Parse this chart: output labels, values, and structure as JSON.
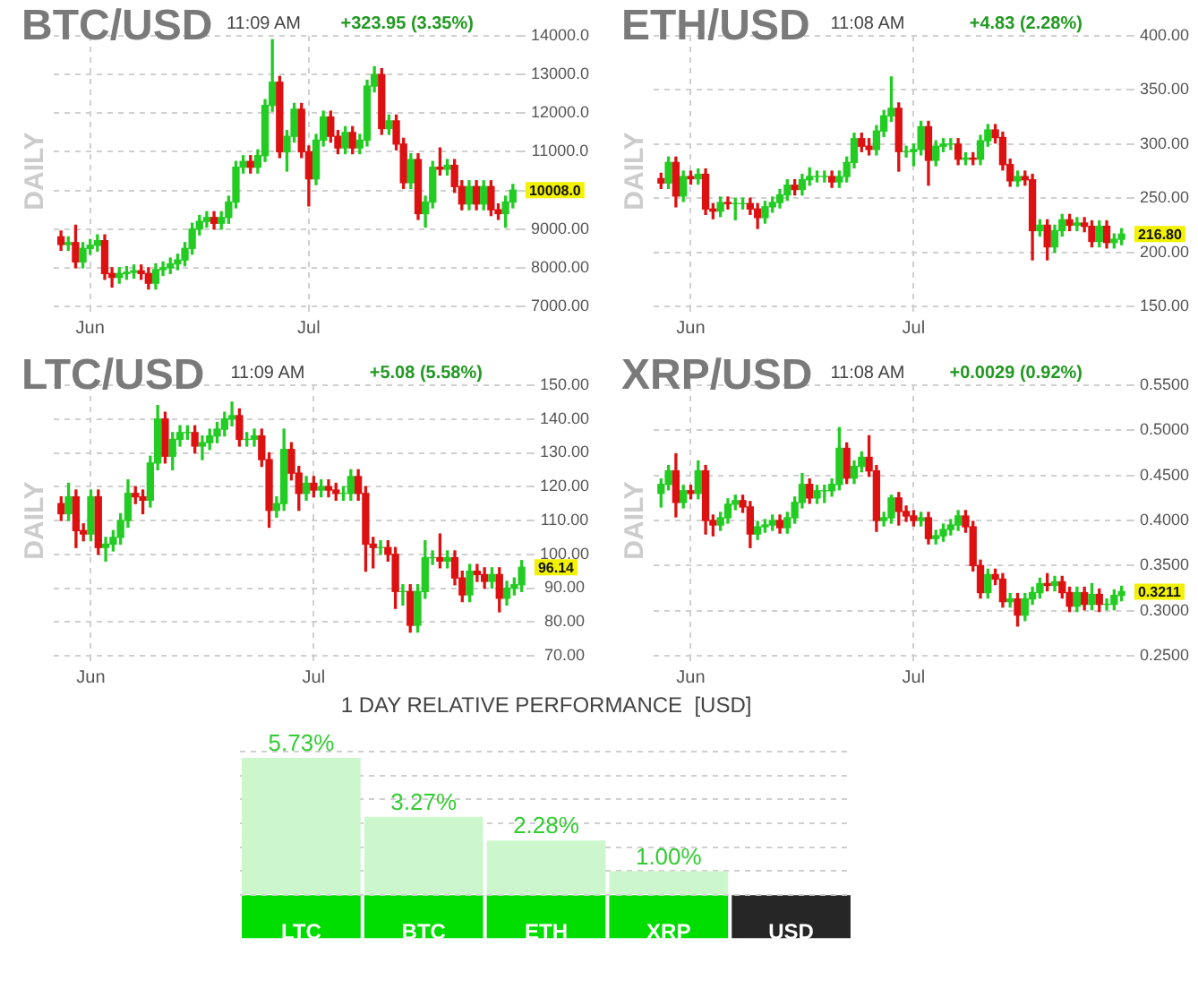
{
  "chart_data": [
    {
      "type": "candlestick",
      "title": "BTC/USD",
      "subtitle": "11:09 AM",
      "ylabel": "DAILY",
      "annotations": [
        "+323.95 (3.35%)",
        "10008.0"
      ],
      "x": [
        "--05-28",
        "--05-29",
        "--05-30",
        "--05-31",
        "--06-01",
        "--06-02",
        "--06-03",
        "--06-04",
        "--06-05",
        "--06-06",
        "--06-07",
        "--06-08",
        "--06-09",
        "--06-10",
        "--06-11",
        "--06-12",
        "--06-13",
        "--06-14",
        "--06-15",
        "--06-16",
        "--06-17",
        "--06-18",
        "--06-19",
        "--06-20",
        "--06-21",
        "--06-22",
        "--06-23",
        "--06-24",
        "--06-25",
        "--06-26",
        "--06-27",
        "--06-28",
        "--06-29",
        "--06-30",
        "--07-01",
        "--07-02",
        "--07-03",
        "--07-04",
        "--07-05",
        "--07-06",
        "--07-07",
        "--07-08",
        "--07-09",
        "--07-10",
        "--07-11",
        "--07-12",
        "--07-13",
        "--07-14",
        "--07-15",
        "--07-16",
        "--07-17",
        "--07-18",
        "--07-19",
        "--07-20",
        "--07-21",
        "--07-22",
        "--07-23",
        "--07-24",
        "--07-25",
        "--07-26",
        "--07-27",
        "--07-28",
        "--07-29"
      ],
      "ohlc": [
        [
          8800,
          8950,
          8450,
          8600
        ],
        [
          8600,
          8800,
          8450,
          8650
        ],
        [
          8650,
          9100,
          8000,
          8150
        ],
        [
          8150,
          8650,
          8000,
          8500
        ],
        [
          8500,
          8730,
          8350,
          8580
        ],
        [
          8580,
          8850,
          8430,
          8700
        ],
        [
          8700,
          8850,
          7700,
          7850
        ],
        [
          7850,
          8000,
          7500,
          7750
        ],
        [
          7750,
          8000,
          7600,
          7850
        ],
        [
          7850,
          8030,
          7700,
          7880
        ],
        [
          7880,
          8070,
          7730,
          7920
        ],
        [
          7920,
          8070,
          7700,
          7850
        ],
        [
          7850,
          8000,
          7450,
          7600
        ],
        [
          7600,
          8100,
          7450,
          7950
        ],
        [
          7950,
          8150,
          7800,
          8000
        ],
        [
          8000,
          8250,
          7850,
          8100
        ],
        [
          8100,
          8350,
          7950,
          8200
        ],
        [
          8200,
          8650,
          8050,
          8500
        ],
        [
          8500,
          9150,
          8350,
          9000
        ],
        [
          9000,
          9350,
          8850,
          9200
        ],
        [
          9200,
          9450,
          9050,
          9300
        ],
        [
          9300,
          9450,
          9000,
          9150
        ],
        [
          9150,
          9450,
          9000,
          9300
        ],
        [
          9300,
          9850,
          9150,
          9700
        ],
        [
          9700,
          10750,
          9550,
          10600
        ],
        [
          10600,
          10900,
          10450,
          10750
        ],
        [
          10750,
          10900,
          10450,
          10600
        ],
        [
          10600,
          11050,
          10450,
          10900
        ],
        [
          10900,
          12350,
          10750,
          12200
        ],
        [
          12200,
          13900,
          12050,
          12800
        ],
        [
          12800,
          12950,
          10850,
          11000
        ],
        [
          11000,
          11550,
          10500,
          11400
        ],
        [
          11400,
          12250,
          11250,
          12100
        ],
        [
          12100,
          12250,
          10850,
          11000
        ],
        [
          11000,
          11150,
          9600,
          10300
        ],
        [
          10300,
          11450,
          10150,
          11300
        ],
        [
          11300,
          12050,
          11150,
          11900
        ],
        [
          11900,
          12050,
          11250,
          11400
        ],
        [
          11400,
          11550,
          10950,
          11100
        ],
        [
          11100,
          11650,
          10950,
          11500
        ],
        [
          11500,
          11650,
          10950,
          11100
        ],
        [
          11100,
          11450,
          10950,
          11300
        ],
        [
          11300,
          12850,
          11150,
          12700
        ],
        [
          12700,
          13200,
          12550,
          13000
        ],
        [
          13000,
          13150,
          11450,
          11600
        ],
        [
          11600,
          11950,
          11450,
          11800
        ],
        [
          11800,
          11950,
          11050,
          11200
        ],
        [
          11200,
          11350,
          10050,
          10200
        ],
        [
          10200,
          10950,
          10050,
          10800
        ],
        [
          10800,
          10950,
          9250,
          9400
        ],
        [
          9400,
          9850,
          9050,
          9700
        ],
        [
          9700,
          10750,
          9550,
          10600
        ],
        [
          10600,
          11100,
          10400,
          10550
        ],
        [
          10550,
          10800,
          10400,
          10650
        ],
        [
          10650,
          10800,
          9950,
          10100
        ],
        [
          10100,
          10250,
          9500,
          9650
        ],
        [
          9650,
          10250,
          9500,
          10100
        ],
        [
          10100,
          10250,
          9500,
          9650
        ],
        [
          9650,
          10250,
          9500,
          10100
        ],
        [
          10100,
          10250,
          9350,
          9500
        ],
        [
          9500,
          9650,
          9250,
          9400
        ],
        [
          9400,
          9850,
          9050,
          9700
        ],
        [
          9700,
          10158,
          9550,
          10008
        ]
      ],
      "xlim": [
        "--05-27",
        "--07-30"
      ],
      "xticks": [
        {
          "value": "--06-01",
          "label": "Jun"
        },
        {
          "value": "--07-01",
          "label": "Jul"
        }
      ],
      "ylim": [
        7000,
        14000
      ],
      "yticks": [
        {
          "value": 7000,
          "label": "7000.00"
        },
        {
          "value": 8000,
          "label": "8000.00"
        },
        {
          "value": 9000,
          "label": "9000.00"
        },
        {
          "value": 10000,
          "label": null
        },
        {
          "value": 11000,
          "label": "11000.0"
        },
        {
          "value": 12000,
          "label": "12000.0"
        },
        {
          "value": 13000,
          "label": "13000.0"
        },
        {
          "value": 14000,
          "label": "14000.0"
        }
      ],
      "grid": true,
      "legend": false
    },
    {
      "type": "candlestick",
      "title": "ETH/USD",
      "subtitle": "11:08 AM",
      "ylabel": "DAILY",
      "annotations": [
        "+4.83 (2.28%)",
        "216.80"
      ],
      "x": [
        "--05-28",
        "--05-29",
        "--05-30",
        "--05-31",
        "--06-01",
        "--06-02",
        "--06-03",
        "--06-04",
        "--06-05",
        "--06-06",
        "--06-07",
        "--06-08",
        "--06-09",
        "--06-10",
        "--06-11",
        "--06-12",
        "--06-13",
        "--06-14",
        "--06-15",
        "--06-16",
        "--06-17",
        "--06-18",
        "--06-19",
        "--06-20",
        "--06-21",
        "--06-22",
        "--06-23",
        "--06-24",
        "--06-25",
        "--06-26",
        "--06-27",
        "--06-28",
        "--06-29",
        "--06-30",
        "--07-01",
        "--07-02",
        "--07-03",
        "--07-04",
        "--07-05",
        "--07-06",
        "--07-07",
        "--07-08",
        "--07-09",
        "--07-10",
        "--07-11",
        "--07-12",
        "--07-13",
        "--07-14",
        "--07-15",
        "--07-16",
        "--07-17",
        "--07-18",
        "--07-19",
        "--07-20",
        "--07-21",
        "--07-22",
        "--07-23",
        "--07-24",
        "--07-25",
        "--07-26",
        "--07-27",
        "--07-28",
        "--07-29"
      ],
      "ohlc": [
        [
          268,
          273,
          259,
          264
        ],
        [
          264,
          288,
          259,
          283
        ],
        [
          283,
          288,
          242,
          252
        ],
        [
          252,
          275,
          247,
          270
        ],
        [
          270,
          275,
          263,
          268
        ],
        [
          268,
          277,
          263,
          272
        ],
        [
          272,
          277,
          235,
          240
        ],
        [
          240,
          245,
          231,
          238
        ],
        [
          238,
          251,
          233,
          246
        ],
        [
          246,
          251,
          240,
          245
        ],
        [
          245,
          250,
          230,
          245
        ],
        [
          245,
          250,
          240,
          245
        ],
        [
          245,
          250,
          235,
          240
        ],
        [
          240,
          245,
          222,
          232
        ],
        [
          232,
          247,
          227,
          242
        ],
        [
          242,
          251,
          237,
          246
        ],
        [
          246,
          258,
          241,
          253
        ],
        [
          253,
          267,
          248,
          262
        ],
        [
          262,
          267,
          253,
          258
        ],
        [
          258,
          272,
          253,
          267
        ],
        [
          267,
          278,
          262,
          270
        ],
        [
          270,
          275,
          265,
          270
        ],
        [
          270,
          275,
          265,
          270
        ],
        [
          270,
          275,
          260,
          265
        ],
        [
          265,
          275,
          260,
          270
        ],
        [
          270,
          288,
          265,
          283
        ],
        [
          283,
          310,
          278,
          305
        ],
        [
          305,
          310,
          293,
          298
        ],
        [
          298,
          305,
          290,
          295
        ],
        [
          295,
          317,
          290,
          312
        ],
        [
          312,
          331,
          307,
          326
        ],
        [
          326,
          362,
          321,
          333
        ],
        [
          333,
          338,
          275,
          293
        ],
        [
          293,
          298,
          288,
          293
        ],
        [
          293,
          300,
          280,
          295
        ],
        [
          295,
          321,
          290,
          316
        ],
        [
          316,
          321,
          262,
          285
        ],
        [
          285,
          303,
          280,
          298
        ],
        [
          298,
          305,
          293,
          300
        ],
        [
          300,
          305,
          295,
          300
        ],
        [
          300,
          305,
          281,
          286
        ],
        [
          286,
          292,
          281,
          287
        ],
        [
          287,
          292,
          281,
          286
        ],
        [
          286,
          308,
          281,
          303
        ],
        [
          303,
          318,
          298,
          313
        ],
        [
          313,
          318,
          301,
          306
        ],
        [
          306,
          311,
          276,
          281
        ],
        [
          281,
          286,
          261,
          266
        ],
        [
          266,
          275,
          261,
          270
        ],
        [
          270,
          275,
          262,
          267
        ],
        [
          267,
          272,
          193,
          220
        ],
        [
          220,
          230,
          215,
          225
        ],
        [
          225,
          230,
          193,
          205
        ],
        [
          205,
          225,
          200,
          220
        ],
        [
          220,
          235,
          215,
          230
        ],
        [
          230,
          235,
          220,
          225
        ],
        [
          225,
          232,
          220,
          227
        ],
        [
          227,
          232,
          219,
          224
        ],
        [
          224,
          229,
          205,
          210
        ],
        [
          210,
          229,
          205,
          224
        ],
        [
          224,
          229,
          204,
          209
        ],
        [
          209,
          217,
          204,
          212
        ],
        [
          212,
          221.8,
          207,
          216.8
        ]
      ],
      "xlim": [
        "--05-27",
        "--07-30"
      ],
      "xticks": [
        {
          "value": "--06-01",
          "label": "Jun"
        },
        {
          "value": "--07-01",
          "label": "Jul"
        }
      ],
      "ylim": [
        150,
        400
      ],
      "yticks": [
        {
          "value": 150,
          "label": "150.00"
        },
        {
          "value": 200,
          "label": "200.00"
        },
        {
          "value": 250,
          "label": "250.00"
        },
        {
          "value": 300,
          "label": "300.00"
        },
        {
          "value": 350,
          "label": "350.00"
        },
        {
          "value": 400,
          "label": "400.00"
        }
      ],
      "grid": true,
      "legend": false
    },
    {
      "type": "candlestick",
      "title": "LTC/USD",
      "subtitle": "11:09 AM",
      "ylabel": "DAILY",
      "annotations": [
        "+5.08 (5.58%)",
        "96.14"
      ],
      "x": [
        "--05-28",
        "--05-29",
        "--05-30",
        "--05-31",
        "--06-01",
        "--06-02",
        "--06-03",
        "--06-04",
        "--06-05",
        "--06-06",
        "--06-07",
        "--06-08",
        "--06-09",
        "--06-10",
        "--06-11",
        "--06-12",
        "--06-13",
        "--06-14",
        "--06-15",
        "--06-16",
        "--06-17",
        "--06-18",
        "--06-19",
        "--06-20",
        "--06-21",
        "--06-22",
        "--06-23",
        "--06-24",
        "--06-25",
        "--06-26",
        "--06-27",
        "--06-28",
        "--06-29",
        "--06-30",
        "--07-01",
        "--07-02",
        "--07-03",
        "--07-04",
        "--07-05",
        "--07-06",
        "--07-07",
        "--07-08",
        "--07-09",
        "--07-10",
        "--07-11",
        "--07-12",
        "--07-13",
        "--07-14",
        "--07-15",
        "--07-16",
        "--07-17",
        "--07-18",
        "--07-19",
        "--07-20",
        "--07-21",
        "--07-22",
        "--07-23",
        "--07-24",
        "--07-25",
        "--07-26",
        "--07-27",
        "--07-28",
        "--07-29"
      ],
      "ohlc": [
        [
          115,
          117,
          110,
          112
        ],
        [
          112,
          121,
          110,
          117
        ],
        [
          117,
          119,
          102,
          107
        ],
        [
          107,
          109,
          104,
          106
        ],
        [
          106,
          119,
          104,
          117
        ],
        [
          117,
          119,
          100,
          102
        ],
        [
          102,
          105,
          98,
          103
        ],
        [
          103,
          107,
          101,
          105
        ],
        [
          105,
          112,
          103,
          110
        ],
        [
          110,
          122,
          108,
          118
        ],
        [
          118,
          120,
          115,
          117
        ],
        [
          117,
          119,
          112,
          116
        ],
        [
          116,
          129,
          114,
          127
        ],
        [
          127,
          144,
          125,
          140
        ],
        [
          140,
          142,
          127,
          129
        ],
        [
          129,
          136,
          125,
          134
        ],
        [
          134,
          138,
          132,
          136
        ],
        [
          136,
          138,
          134,
          136
        ],
        [
          136,
          138,
          130,
          132
        ],
        [
          132,
          135,
          128,
          133
        ],
        [
          133,
          137,
          131,
          135
        ],
        [
          135,
          139,
          133,
          137
        ],
        [
          137,
          142,
          135,
          140
        ],
        [
          140,
          145,
          138,
          141
        ],
        [
          141,
          143,
          132,
          134
        ],
        [
          134,
          136,
          132,
          134
        ],
        [
          134,
          137,
          132,
          135
        ],
        [
          135,
          137,
          126,
          128
        ],
        [
          128,
          130,
          108,
          113
        ],
        [
          113,
          117,
          111,
          115
        ],
        [
          115,
          137,
          113,
          131
        ],
        [
          131,
          133,
          122,
          124
        ],
        [
          124,
          126,
          113,
          118
        ],
        [
          118,
          123,
          116,
          121
        ],
        [
          121,
          123,
          117,
          119
        ],
        [
          119,
          122,
          117,
          120
        ],
        [
          120,
          122,
          117,
          119
        ],
        [
          119,
          121,
          116,
          118
        ],
        [
          118,
          120,
          116,
          118
        ],
        [
          118,
          125,
          116,
          123
        ],
        [
          123,
          125,
          116,
          118
        ],
        [
          118,
          120,
          95,
          103
        ],
        [
          103,
          105,
          96,
          102
        ],
        [
          102,
          104,
          100,
          102
        ],
        [
          102,
          104,
          98,
          100
        ],
        [
          100,
          102,
          84,
          89
        ],
        [
          89,
          91,
          85,
          89
        ],
        [
          89,
          91,
          77,
          79
        ],
        [
          79,
          91,
          77,
          89
        ],
        [
          89,
          104,
          87,
          99
        ],
        [
          99,
          101,
          97,
          99
        ],
        [
          99,
          106,
          96,
          98
        ],
        [
          98,
          101,
          96,
          99
        ],
        [
          99,
          101,
          91,
          93
        ],
        [
          93,
          95,
          86,
          88
        ],
        [
          88,
          97,
          86,
          95
        ],
        [
          95,
          97,
          92,
          94
        ],
        [
          94,
          96,
          90,
          92
        ],
        [
          92,
          96,
          90,
          94
        ],
        [
          94,
          96,
          83,
          87
        ],
        [
          87,
          92,
          85,
          90
        ],
        [
          90,
          93,
          88,
          91
        ],
        [
          91,
          98.14,
          89,
          96.14
        ]
      ],
      "xlim": [
        "--05-27",
        "--07-30"
      ],
      "xticks": [
        {
          "value": "--06-01",
          "label": "Jun"
        },
        {
          "value": "--07-01",
          "label": "Jul"
        }
      ],
      "ylim": [
        70,
        150
      ],
      "yticks": [
        {
          "value": 70,
          "label": "70.00"
        },
        {
          "value": 80,
          "label": "80.00"
        },
        {
          "value": 90,
          "label": "90.00"
        },
        {
          "value": 100,
          "label": "100.00"
        },
        {
          "value": 110,
          "label": "110.00"
        },
        {
          "value": 120,
          "label": "120.00"
        },
        {
          "value": 130,
          "label": "130.00"
        },
        {
          "value": 140,
          "label": "140.00"
        },
        {
          "value": 150,
          "label": "150.00"
        }
      ],
      "grid": true,
      "legend": false
    },
    {
      "type": "candlestick",
      "title": "XRP/USD",
      "subtitle": "11:08 AM",
      "ylabel": "DAILY",
      "annotations": [
        "+0.0029 (0.92%)",
        "0.3211"
      ],
      "x": [
        "--05-28",
        "--05-29",
        "--05-30",
        "--05-31",
        "--06-01",
        "--06-02",
        "--06-03",
        "--06-04",
        "--06-05",
        "--06-06",
        "--06-07",
        "--06-08",
        "--06-09",
        "--06-10",
        "--06-11",
        "--06-12",
        "--06-13",
        "--06-14",
        "--06-15",
        "--06-16",
        "--06-17",
        "--06-18",
        "--06-19",
        "--06-20",
        "--06-21",
        "--06-22",
        "--06-23",
        "--06-24",
        "--06-25",
        "--06-26",
        "--06-27",
        "--06-28",
        "--06-29",
        "--06-30",
        "--07-01",
        "--07-02",
        "--07-03",
        "--07-04",
        "--07-05",
        "--07-06",
        "--07-07",
        "--07-08",
        "--07-09",
        "--07-10",
        "--07-11",
        "--07-12",
        "--07-13",
        "--07-14",
        "--07-15",
        "--07-16",
        "--07-17",
        "--07-18",
        "--07-19",
        "--07-20",
        "--07-21",
        "--07-22",
        "--07-23",
        "--07-24",
        "--07-25",
        "--07-26",
        "--07-27",
        "--07-28",
        "--07-29"
      ],
      "ohlc": [
        [
          0.43,
          0.446,
          0.415,
          0.44
        ],
        [
          0.44,
          0.461,
          0.434,
          0.455
        ],
        [
          0.455,
          0.474,
          0.404,
          0.42
        ],
        [
          0.42,
          0.439,
          0.414,
          0.433
        ],
        [
          0.433,
          0.439,
          0.424,
          0.43
        ],
        [
          0.43,
          0.466,
          0.424,
          0.455
        ],
        [
          0.455,
          0.461,
          0.385,
          0.4
        ],
        [
          0.4,
          0.406,
          0.383,
          0.395
        ],
        [
          0.395,
          0.409,
          0.389,
          0.403
        ],
        [
          0.403,
          0.424,
          0.397,
          0.418
        ],
        [
          0.418,
          0.428,
          0.412,
          0.422
        ],
        [
          0.422,
          0.428,
          0.409,
          0.415
        ],
        [
          0.415,
          0.421,
          0.37,
          0.385
        ],
        [
          0.385,
          0.399,
          0.379,
          0.393
        ],
        [
          0.393,
          0.401,
          0.387,
          0.395
        ],
        [
          0.395,
          0.406,
          0.389,
          0.4
        ],
        [
          0.4,
          0.406,
          0.386,
          0.392
        ],
        [
          0.392,
          0.409,
          0.386,
          0.403
        ],
        [
          0.403,
          0.426,
          0.397,
          0.42
        ],
        [
          0.42,
          0.452,
          0.414,
          0.44
        ],
        [
          0.44,
          0.446,
          0.419,
          0.425
        ],
        [
          0.425,
          0.439,
          0.419,
          0.433
        ],
        [
          0.433,
          0.439,
          0.42,
          0.433
        ],
        [
          0.433,
          0.446,
          0.427,
          0.44
        ],
        [
          0.44,
          0.503,
          0.434,
          0.48
        ],
        [
          0.48,
          0.486,
          0.441,
          0.447
        ],
        [
          0.447,
          0.466,
          0.441,
          0.46
        ],
        [
          0.46,
          0.476,
          0.454,
          0.47
        ],
        [
          0.47,
          0.494,
          0.449,
          0.455
        ],
        [
          0.455,
          0.461,
          0.388,
          0.4
        ],
        [
          0.4,
          0.409,
          0.394,
          0.403
        ],
        [
          0.403,
          0.428,
          0.397,
          0.425
        ],
        [
          0.425,
          0.431,
          0.395,
          0.41
        ],
        [
          0.41,
          0.416,
          0.399,
          0.405
        ],
        [
          0.405,
          0.411,
          0.394,
          0.4
        ],
        [
          0.4,
          0.409,
          0.394,
          0.403
        ],
        [
          0.403,
          0.409,
          0.374,
          0.38
        ],
        [
          0.38,
          0.389,
          0.374,
          0.383
        ],
        [
          0.383,
          0.396,
          0.377,
          0.39
        ],
        [
          0.39,
          0.401,
          0.384,
          0.395
        ],
        [
          0.395,
          0.411,
          0.389,
          0.405
        ],
        [
          0.405,
          0.411,
          0.387,
          0.393
        ],
        [
          0.393,
          0.399,
          0.344,
          0.35
        ],
        [
          0.35,
          0.356,
          0.314,
          0.32
        ],
        [
          0.32,
          0.346,
          0.314,
          0.34
        ],
        [
          0.34,
          0.346,
          0.329,
          0.335
        ],
        [
          0.335,
          0.341,
          0.304,
          0.31
        ],
        [
          0.31,
          0.319,
          0.304,
          0.313
        ],
        [
          0.313,
          0.319,
          0.283,
          0.295
        ],
        [
          0.295,
          0.319,
          0.289,
          0.313
        ],
        [
          0.313,
          0.326,
          0.307,
          0.32
        ],
        [
          0.32,
          0.336,
          0.314,
          0.33
        ],
        [
          0.33,
          0.341,
          0.322,
          0.328
        ],
        [
          0.328,
          0.338,
          0.322,
          0.332
        ],
        [
          0.332,
          0.338,
          0.314,
          0.32
        ],
        [
          0.32,
          0.326,
          0.299,
          0.305
        ],
        [
          0.305,
          0.326,
          0.299,
          0.32
        ],
        [
          0.32,
          0.326,
          0.301,
          0.307
        ],
        [
          0.307,
          0.33,
          0.301,
          0.318
        ],
        [
          0.318,
          0.324,
          0.299,
          0.307
        ],
        [
          0.307,
          0.313,
          0.301,
          0.307
        ],
        [
          0.307,
          0.323,
          0.301,
          0.317
        ],
        [
          0.317,
          0.327,
          0.311,
          0.3211
        ]
      ],
      "xlim": [
        "--05-27",
        "--07-30"
      ],
      "xticks": [
        {
          "value": "--06-01",
          "label": "Jun"
        },
        {
          "value": "--07-01",
          "label": "Jul"
        }
      ],
      "ylim": [
        0.25,
        0.55
      ],
      "yticks": [
        {
          "value": 0.25,
          "label": "0.2500"
        },
        {
          "value": 0.3,
          "label": "0.3000"
        },
        {
          "value": 0.35,
          "label": "0.3500"
        },
        {
          "value": 0.4,
          "label": "0.4000"
        },
        {
          "value": 0.45,
          "label": "0.4500"
        },
        {
          "value": 0.5,
          "label": "0.5000"
        },
        {
          "value": 0.55,
          "label": "0.5500"
        }
      ],
      "grid": true,
      "legend": false
    },
    {
      "type": "bar",
      "title": "1 DAY RELATIVE PERFORMANCE  [USD]",
      "categories": [
        "LTC",
        "BTC",
        "ETH",
        "XRP",
        "USD"
      ],
      "values": [
        5.73,
        3.27,
        2.28,
        1.0,
        0
      ],
      "value_labels": [
        "5.73%",
        "3.27%",
        "2.28%",
        "1.00%",
        null
      ],
      "colors": [
        "#ccf7cc",
        "#ccf7cc",
        "#ccf7cc",
        "#ccf7cc",
        "#262626"
      ],
      "ylim": [
        0,
        6
      ],
      "yticks": [
        {
          "value": 0,
          "label": null
        },
        {
          "value": 1,
          "label": null
        },
        {
          "value": 2,
          "label": null
        },
        {
          "value": 3,
          "label": null
        },
        {
          "value": 4,
          "label": null
        },
        {
          "value": 5,
          "label": null
        },
        {
          "value": 6,
          "label": null
        }
      ],
      "grid": "y",
      "tick_labels": "x",
      "legend": false
    }
  ]
}
